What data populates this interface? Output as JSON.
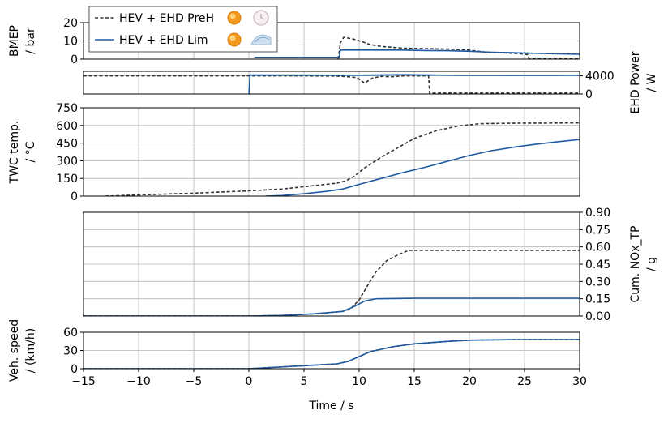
{
  "chart_data": {
    "type": "line",
    "x_axis": {
      "label": "Time / s",
      "range": [
        -15,
        30
      ],
      "ticks": [
        -15,
        -10,
        -5,
        0,
        5,
        10,
        15,
        20,
        25,
        30
      ],
      "tick_labels": [
        "−15",
        "−10",
        "−5",
        "0",
        "5",
        "10",
        "15",
        "20",
        "25",
        "30"
      ]
    },
    "legend": {
      "placement": "top-left",
      "entries": [
        {
          "name": "HEV + EHD PreH",
          "color": "#333333",
          "style": "dashed",
          "icons": [
            "catalyst-heated-icon",
            "clock-icon"
          ]
        },
        {
          "name": "HEV + EHD Lim",
          "color": "#1f5aa0",
          "style": "solid",
          "icons": [
            "catalyst-heated-icon",
            "exhaust-flow-icon"
          ]
        }
      ]
    },
    "panels": [
      {
        "id": "bmep",
        "ylabel": [
          "BMEP",
          "/ bar"
        ],
        "ylabel_side": "left",
        "ylim": [
          0,
          20
        ],
        "yticks": [
          0,
          10,
          20
        ],
        "ytick_labels": [
          "0",
          "10",
          "20"
        ],
        "series": [
          {
            "name": "HEV + EHD PreH",
            "points": [
              [
                8.1,
                0
              ],
              [
                8.3,
                9
              ],
              [
                8.6,
                12
              ],
              [
                9.5,
                11
              ],
              [
                10.3,
                9.5
              ],
              [
                11.0,
                8
              ],
              [
                12.0,
                7
              ],
              [
                14.0,
                6
              ],
              [
                16.0,
                5.8
              ],
              [
                18.0,
                5.5
              ],
              [
                20.0,
                5
              ],
              [
                21.5,
                3.8
              ],
              [
                23.0,
                3.5
              ],
              [
                24.5,
                3.0
              ],
              [
                25.3,
                2.5
              ],
              [
                25.4,
                0.5
              ],
              [
                27.0,
                0.5
              ],
              [
                30,
                0.5
              ]
            ]
          },
          {
            "name": "HEV + EHD Lim",
            "points": [
              [
                0.5,
                1
              ],
              [
                3.0,
                1
              ],
              [
                5.0,
                1
              ],
              [
                7.0,
                1
              ],
              [
                8.2,
                1
              ],
              [
                8.3,
                5
              ],
              [
                12.0,
                5
              ],
              [
                14.0,
                5
              ],
              [
                16.0,
                4.7
              ],
              [
                18.0,
                4.6
              ],
              [
                20.0,
                4.3
              ],
              [
                22.0,
                3.8
              ],
              [
                24.0,
                3.5
              ],
              [
                26.0,
                3.2
              ],
              [
                28.0,
                2.9
              ],
              [
                30,
                2.7
              ]
            ]
          }
        ]
      },
      {
        "id": "ehd-power",
        "ylabel": [
          "EHD Power",
          "/ W"
        ],
        "ylabel_side": "right",
        "ylim": [
          0,
          5000
        ],
        "yticks": [
          0,
          4000
        ],
        "ytick_labels": [
          "0",
          "4000"
        ],
        "series": [
          {
            "name": "HEV + EHD PreH",
            "points": [
              [
                -15,
                4000
              ],
              [
                5.0,
                4000
              ],
              [
                8.0,
                3950
              ],
              [
                9.0,
                3800
              ],
              [
                9.8,
                3600
              ],
              [
                10.5,
                2400
              ],
              [
                11.2,
                3500
              ],
              [
                12.0,
                3900
              ],
              [
                13.0,
                3800
              ],
              [
                14.0,
                4000
              ],
              [
                16.3,
                4000
              ],
              [
                16.4,
                200
              ],
              [
                30,
                200
              ]
            ]
          },
          {
            "name": "HEV + EHD Lim",
            "points": [
              [
                0,
                0
              ],
              [
                0.1,
                4200
              ],
              [
                10,
                4150
              ],
              [
                14,
                4250
              ],
              [
                20,
                4100
              ],
              [
                30,
                4150
              ]
            ]
          }
        ]
      },
      {
        "id": "twc-temp",
        "ylabel": [
          "TWC temp.",
          "/ °C"
        ],
        "ylabel_side": "left",
        "ylim": [
          0,
          750
        ],
        "yticks": [
          0,
          150,
          300,
          450,
          600,
          750
        ],
        "ytick_labels": [
          "0",
          "150",
          "300",
          "450",
          "600",
          "750"
        ],
        "series": [
          {
            "name": "HEV + EHD PreH",
            "points": [
              [
                -13,
                0
              ],
              [
                -10,
                10
              ],
              [
                -5,
                25
              ],
              [
                0,
                45
              ],
              [
                3,
                60
              ],
              [
                5,
                80
              ],
              [
                8,
                110
              ],
              [
                8.8,
                130
              ],
              [
                9.5,
                165
              ],
              [
                10.5,
                240
              ],
              [
                12,
                330
              ],
              [
                13.5,
                410
              ],
              [
                15,
                490
              ],
              [
                17,
                555
              ],
              [
                19,
                595
              ],
              [
                21,
                615
              ],
              [
                23,
                618
              ],
              [
                25,
                620
              ],
              [
                27,
                620
              ],
              [
                30,
                622
              ]
            ]
          },
          {
            "name": "HEV + EHD Lim",
            "points": [
              [
                1.5,
                0
              ],
              [
                3,
                5
              ],
              [
                5,
                20
              ],
              [
                7,
                40
              ],
              [
                8.5,
                60
              ],
              [
                10,
                100
              ],
              [
                12,
                150
              ],
              [
                14,
                200
              ],
              [
                16,
                245
              ],
              [
                18,
                295
              ],
              [
                20,
                345
              ],
              [
                22,
                385
              ],
              [
                24,
                415
              ],
              [
                26,
                440
              ],
              [
                28,
                462
              ],
              [
                30,
                480
              ]
            ]
          }
        ]
      },
      {
        "id": "cum-nox",
        "ylabel": [
          "Cum. NOx_TP",
          "/ g"
        ],
        "ylabel_side": "right",
        "ylim": [
          0,
          0.9
        ],
        "yticks": [
          0,
          0.15,
          0.3,
          0.45,
          0.6,
          0.75,
          0.9
        ],
        "ytick_labels": [
          "0.00",
          "0.15",
          "0.30",
          "0.45",
          "0.60",
          "0.75",
          "0.90"
        ],
        "series": [
          {
            "name": "HEV + EHD PreH",
            "points": [
              [
                -15,
                0
              ],
              [
                0,
                0
              ],
              [
                3,
                0.005
              ],
              [
                6,
                0.02
              ],
              [
                8.5,
                0.04
              ],
              [
                9.2,
                0.06
              ],
              [
                10,
                0.14
              ],
              [
                10.8,
                0.27
              ],
              [
                11.5,
                0.38
              ],
              [
                12.5,
                0.48
              ],
              [
                13.5,
                0.53
              ],
              [
                14.5,
                0.57
              ],
              [
                20,
                0.57
              ],
              [
                25,
                0.57
              ],
              [
                30,
                0.57
              ]
            ]
          },
          {
            "name": "HEV + EHD Lim",
            "points": [
              [
                -15,
                0
              ],
              [
                0,
                0
              ],
              [
                3,
                0.005
              ],
              [
                6,
                0.02
              ],
              [
                8.5,
                0.04
              ],
              [
                9.5,
                0.08
              ],
              [
                10.5,
                0.13
              ],
              [
                11.5,
                0.15
              ],
              [
                15,
                0.155
              ],
              [
                20,
                0.155
              ],
              [
                25,
                0.155
              ],
              [
                30,
                0.155
              ]
            ]
          }
        ]
      },
      {
        "id": "veh-speed",
        "ylabel": [
          "Veh. speed",
          "/ (km/h)"
        ],
        "ylabel_side": "left",
        "ylim": [
          0,
          60
        ],
        "yticks": [
          0,
          30,
          60
        ],
        "ytick_labels": [
          "0",
          "30",
          "60"
        ],
        "series": [
          {
            "name": "HEV + EHD PreH",
            "points": [
              [
                -15,
                0
              ],
              [
                0,
                0
              ],
              [
                2,
                2
              ],
              [
                5,
                5
              ],
              [
                8,
                8
              ],
              [
                9,
                12
              ],
              [
                10,
                20
              ],
              [
                11,
                28
              ],
              [
                13,
                36
              ],
              [
                15,
                41
              ],
              [
                18,
                45
              ],
              [
                20,
                47
              ],
              [
                22,
                47.5
              ],
              [
                25,
                48
              ],
              [
                30,
                48
              ]
            ]
          },
          {
            "name": "HEV + EHD Lim",
            "points": [
              [
                -15,
                0
              ],
              [
                0,
                0
              ],
              [
                2,
                2
              ],
              [
                5,
                5
              ],
              [
                8,
                8
              ],
              [
                9,
                12
              ],
              [
                10,
                20
              ],
              [
                11,
                28
              ],
              [
                13,
                36
              ],
              [
                15,
                41
              ],
              [
                18,
                45
              ],
              [
                20,
                47
              ],
              [
                22,
                47.5
              ],
              [
                25,
                48
              ],
              [
                30,
                48
              ]
            ]
          }
        ]
      }
    ]
  }
}
